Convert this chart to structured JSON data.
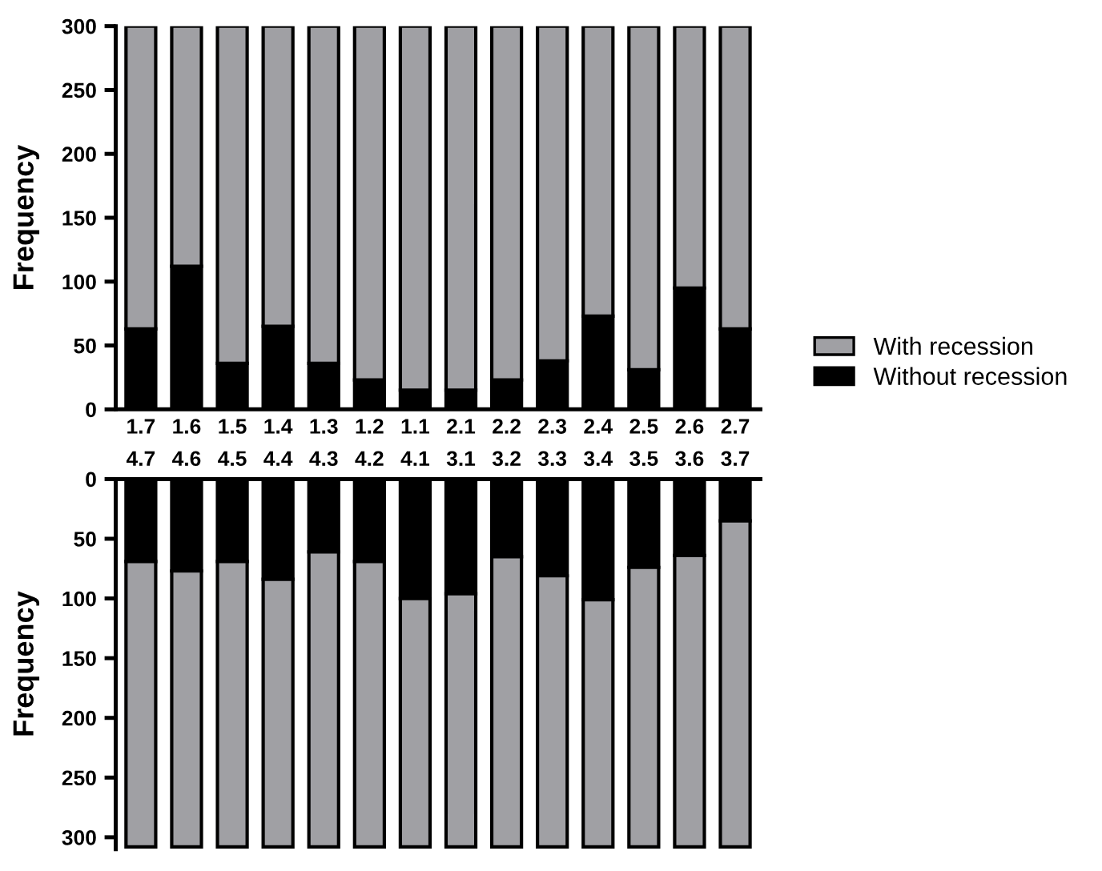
{
  "chart_data": [
    {
      "type": "bar",
      "stacked": true,
      "ylabel": "Frequency",
      "categories": [
        "1.7",
        "1.6",
        "1.5",
        "1.4",
        "1.3",
        "1.2",
        "1.1",
        "2.1",
        "2.2",
        "2.3",
        "2.4",
        "2.5",
        "2.6",
        "2.7"
      ],
      "series": [
        {
          "name": "Without recession",
          "color": "#000000",
          "values": [
            63,
            112,
            36,
            65,
            36,
            23,
            15,
            15,
            23,
            38,
            73,
            31,
            95,
            63
          ]
        },
        {
          "name": "With recession",
          "color": "#a0a0a4",
          "values": [
            237,
            188,
            264,
            235,
            264,
            277,
            285,
            285,
            277,
            262,
            227,
            269,
            205,
            237
          ]
        }
      ],
      "ylim": [
        0,
        300
      ],
      "yticks": [
        0,
        50,
        100,
        150,
        200,
        250,
        300
      ],
      "legend": "right",
      "grid": false
    },
    {
      "type": "bar",
      "stacked": true,
      "ylabel": "Frequency",
      "categories": [
        "4.7",
        "4.6",
        "4.5",
        "4.4",
        "4.3",
        "4.2",
        "4.1",
        "3.1",
        "3.2",
        "3.3",
        "3.4",
        "3.5",
        "3.6",
        "3.7"
      ],
      "series": [
        {
          "color": "#000000",
          "values": [
            69,
            77,
            69,
            84,
            61,
            69,
            100,
            96,
            65,
            81,
            101,
            74,
            64,
            35
          ]
        },
        {
          "color": "#a0a0a4",
          "values": [
            239,
            231,
            239,
            224,
            247,
            239,
            208,
            212,
            243,
            227,
            207,
            234,
            244,
            273
          ]
        }
      ],
      "ylim": [
        310,
        0
      ],
      "yticks": [
        0,
        50,
        100,
        150,
        200,
        250,
        300
      ],
      "grid": false
    }
  ]
}
